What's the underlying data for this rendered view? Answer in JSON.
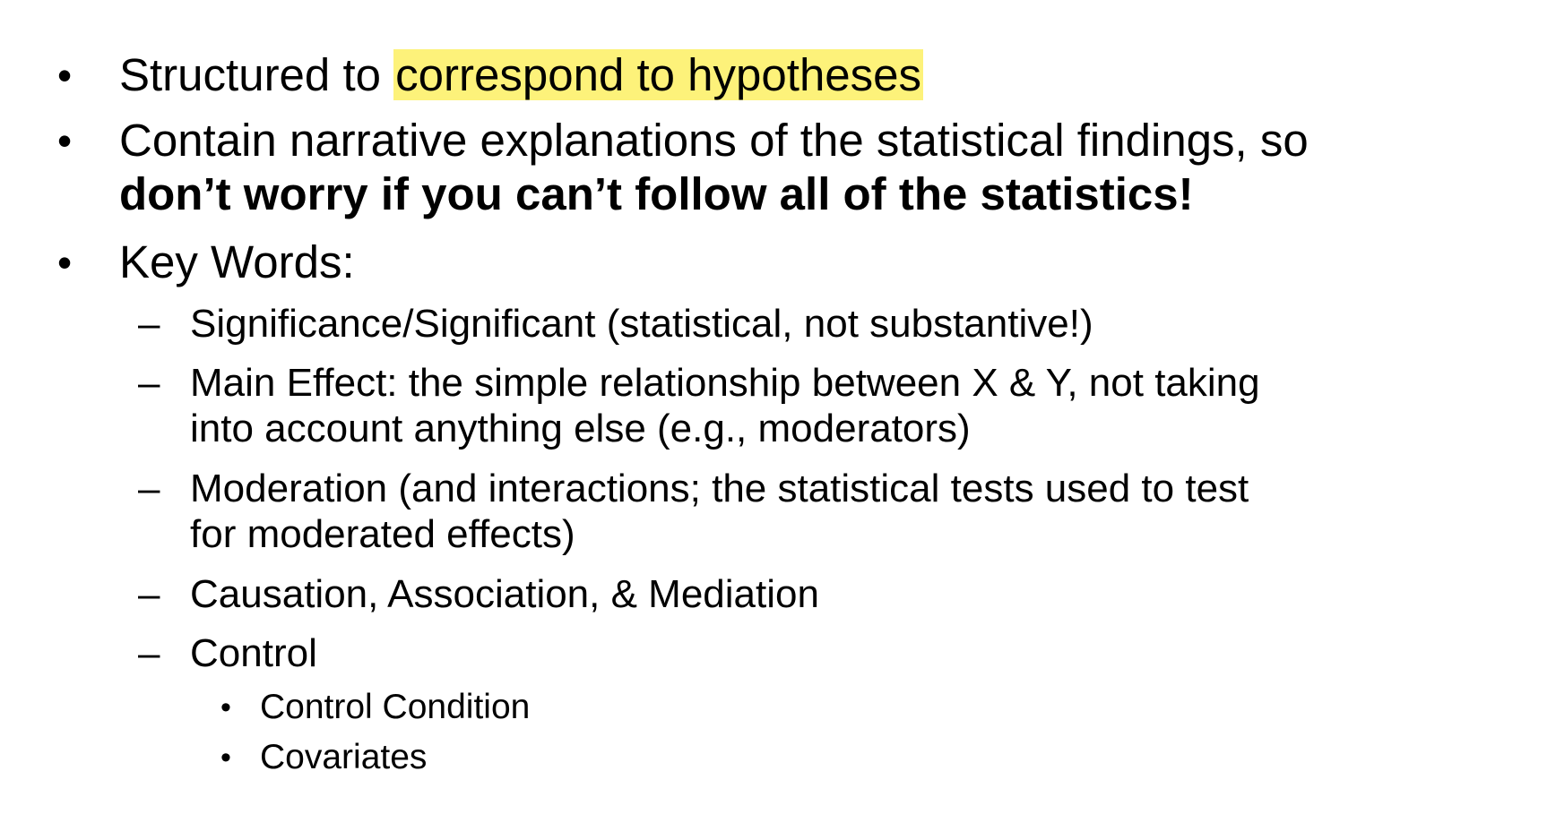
{
  "bullets": {
    "b1": {
      "marker": "•",
      "text_plain": "Structured to ",
      "text_highlight": "correspond to hypotheses"
    },
    "b2": {
      "marker": "•",
      "line1": "Contain narrative explanations of the statistical findings, so",
      "line2_bold": "don’t worry if you can’t follow all of the statistics!"
    },
    "b3": {
      "marker": "•",
      "text": "Key Words:",
      "sub": {
        "s1": {
          "marker": "–",
          "text": "Significance/Significant (statistical, not substantive!)"
        },
        "s2": {
          "marker": "–",
          "line1": "Main Effect: the simple relationship between X & Y, not taking",
          "line2": "into account anything else (e.g., moderators)"
        },
        "s3": {
          "marker": "–",
          "line1": "Moderation (and interactions; the statistical tests used to test",
          "line2": "for moderated effects)"
        },
        "s4": {
          "marker": "–",
          "text": "Causation, Association, & Mediation"
        },
        "s5": {
          "marker": "–",
          "text": "Control",
          "sub": {
            "c1": {
              "marker": "•",
              "text": "Control Condition"
            },
            "c2": {
              "marker": "•",
              "text": "Covariates"
            }
          }
        }
      }
    }
  }
}
